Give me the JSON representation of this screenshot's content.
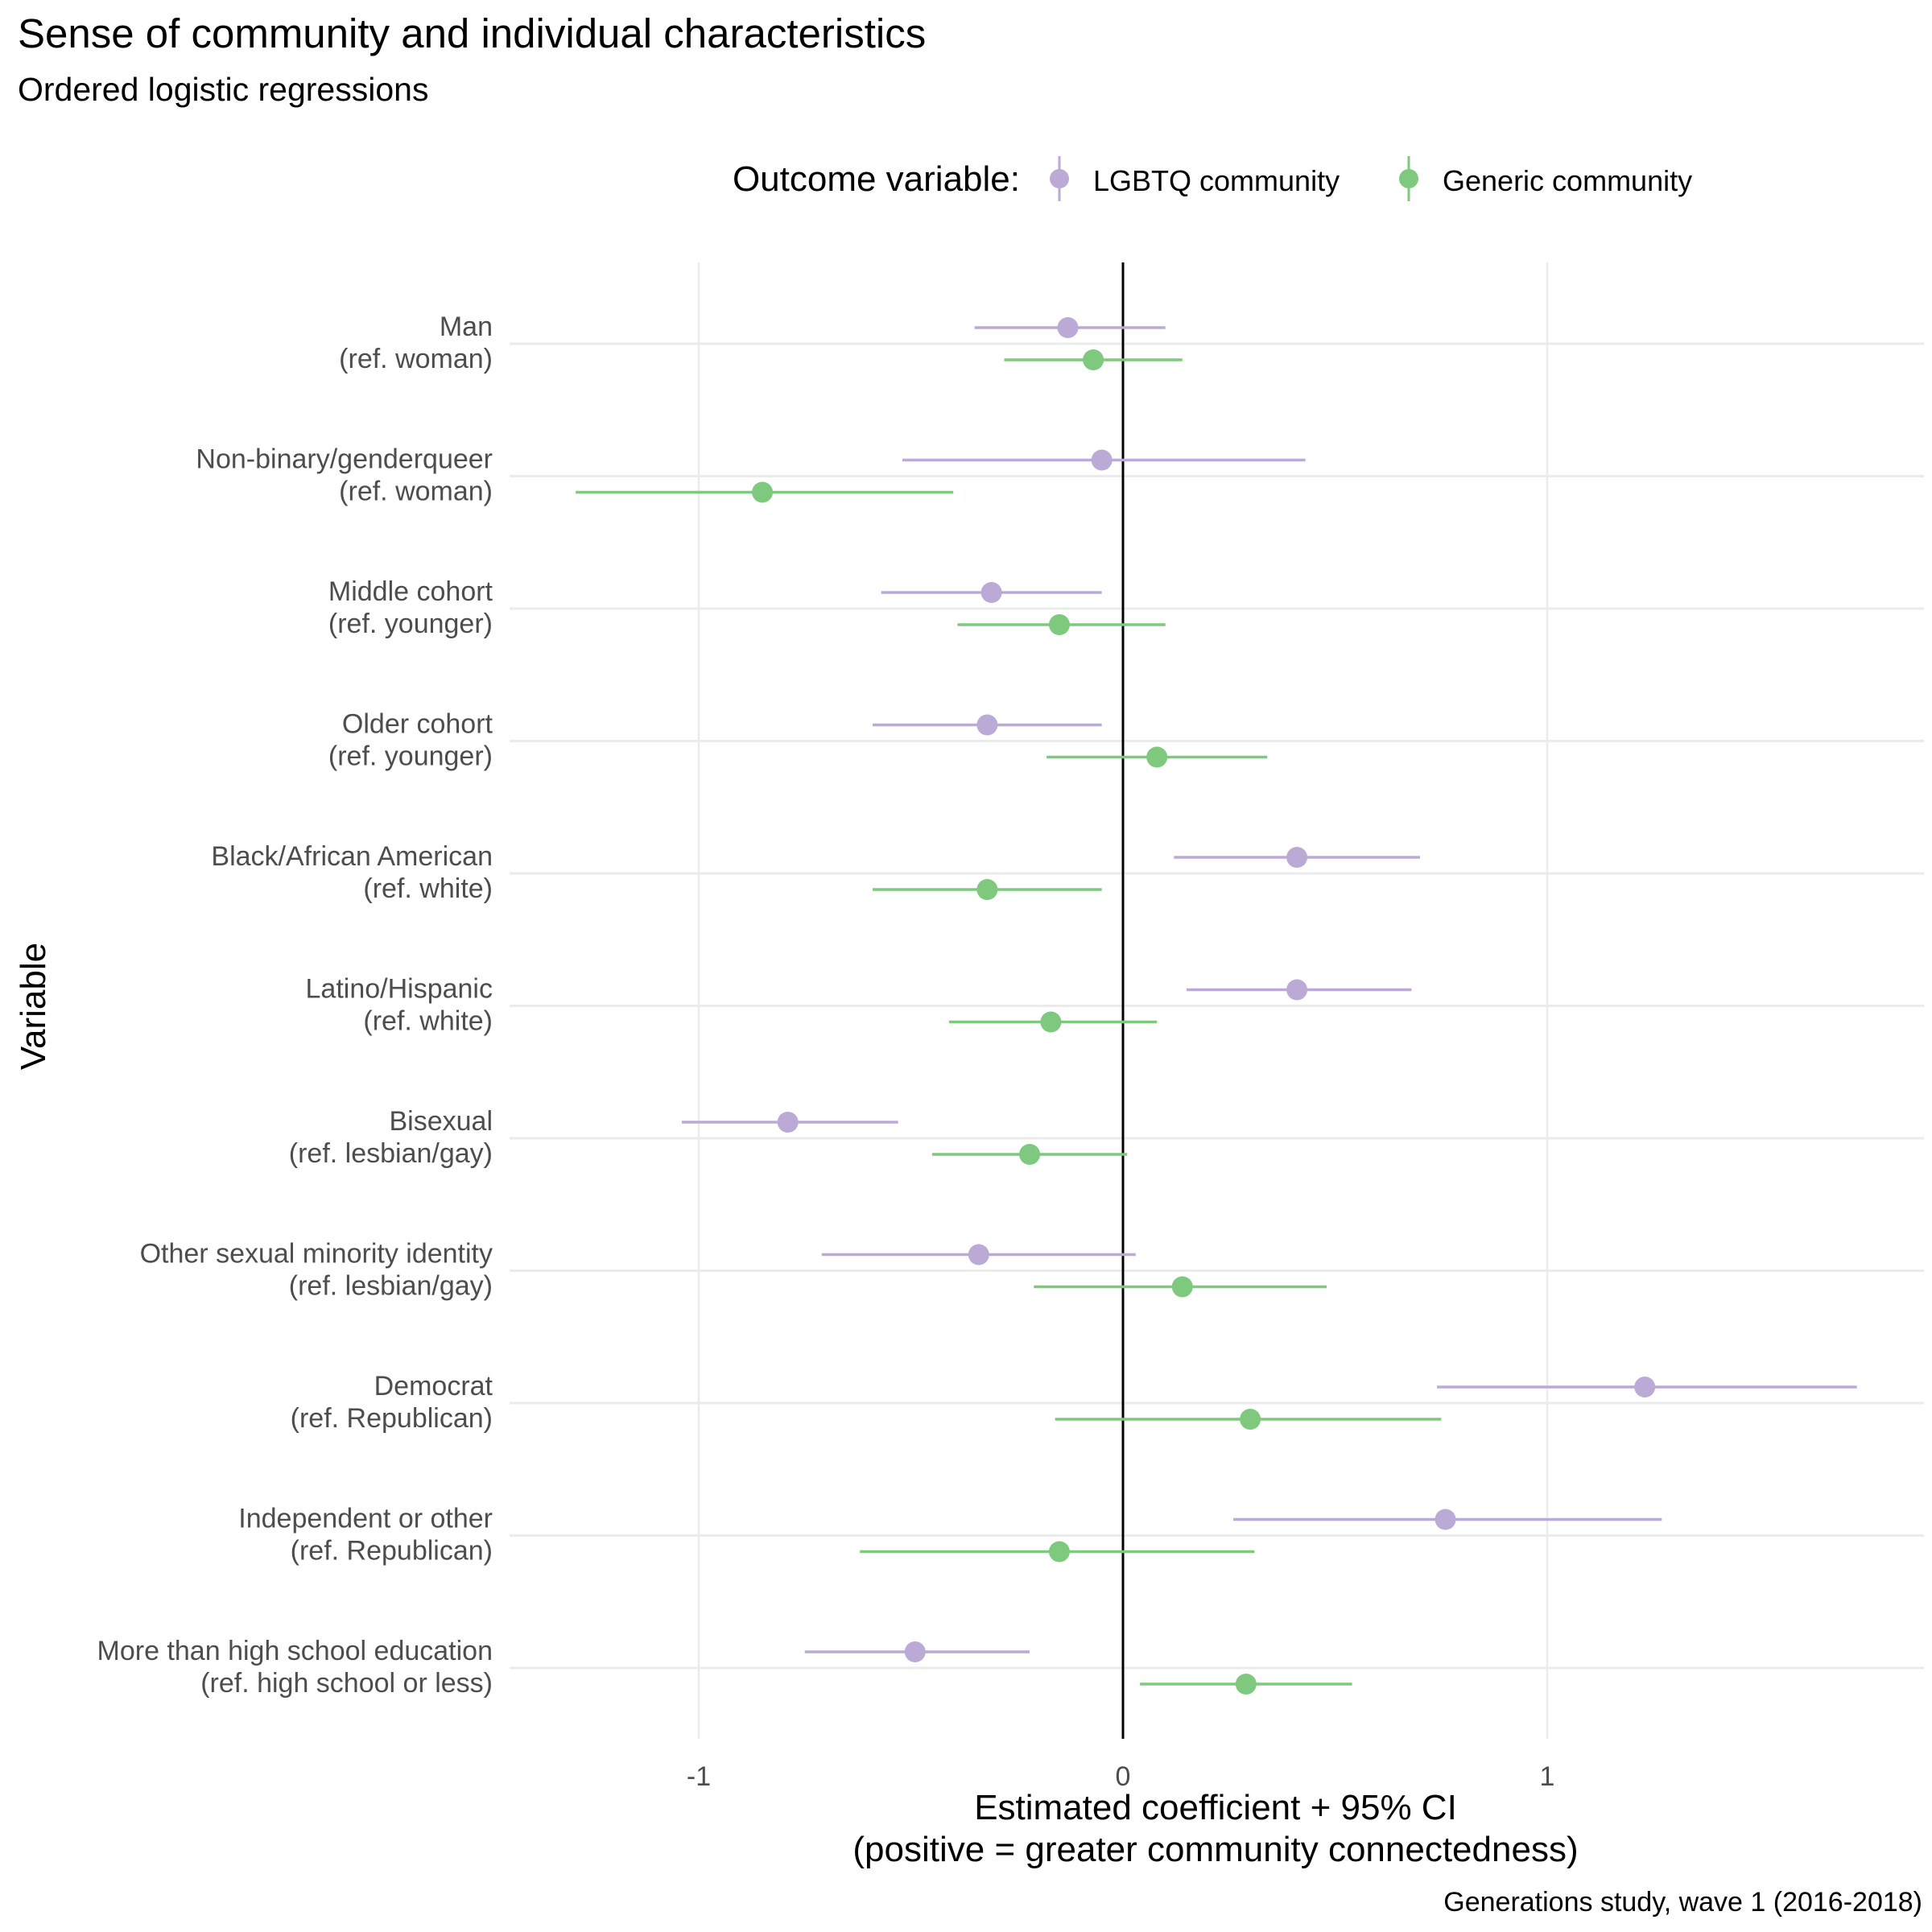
{
  "chart_data": {
    "type": "forest",
    "title": "Sense of community and individual characteristics",
    "subtitle": "Ordered logistic regressions",
    "xlabel_line1": "Estimated coefficient + 95% CI",
    "xlabel_line2": "(positive = greater community connectedness)",
    "ylabel": "Variable",
    "caption": "Generations study, wave 1 (2016-2018)",
    "legend_title": "Outcome variable:",
    "legend_placement": "top",
    "xlim": [
      -1.43,
      1.88
    ],
    "x_ticks": [
      -1,
      0,
      1
    ],
    "x_tick_labels": [
      "-1",
      "0",
      "1"
    ],
    "reference_line": 0,
    "grid": true,
    "categories": [
      {
        "line1": "Man",
        "line2": "(ref. woman)"
      },
      {
        "line1": "Non-binary/genderqueer",
        "line2": "(ref. woman)"
      },
      {
        "line1": "Middle cohort",
        "line2": "(ref. younger)"
      },
      {
        "line1": "Older cohort",
        "line2": "(ref. younger)"
      },
      {
        "line1": "Black/African American",
        "line2": "(ref. white)"
      },
      {
        "line1": "Latino/Hispanic",
        "line2": "(ref. white)"
      },
      {
        "line1": "Bisexual",
        "line2": "(ref. lesbian/gay)"
      },
      {
        "line1": "Other sexual minority identity",
        "line2": "(ref. lesbian/gay)"
      },
      {
        "line1": "Democrat",
        "line2": "(ref. Republican)"
      },
      {
        "line1": "Independent or other",
        "line2": "(ref. Republican)"
      },
      {
        "line1": "More than high school education",
        "line2": "(ref. high school or less)"
      }
    ],
    "series": [
      {
        "name": "LGBTQ community",
        "color": "#bcaad6",
        "estimate": [
          -0.13,
          -0.05,
          -0.31,
          -0.32,
          0.41,
          0.41,
          -0.79,
          -0.34,
          1.23,
          0.76,
          -0.49
        ],
        "ci_low": [
          -0.35,
          -0.52,
          -0.57,
          -0.59,
          0.12,
          0.15,
          -1.04,
          -0.71,
          0.74,
          0.26,
          -0.75
        ],
        "ci_high": [
          0.1,
          0.43,
          -0.05,
          -0.05,
          0.7,
          0.68,
          -0.53,
          0.03,
          1.73,
          1.27,
          -0.22
        ]
      },
      {
        "name": "Generic community",
        "color": "#7ec97e",
        "estimate": [
          -0.07,
          -0.85,
          -0.15,
          0.08,
          -0.32,
          -0.17,
          -0.22,
          0.14,
          0.3,
          -0.15,
          0.29
        ],
        "ci_low": [
          -0.28,
          -1.29,
          -0.39,
          -0.18,
          -0.59,
          -0.41,
          -0.45,
          -0.21,
          -0.16,
          -0.62,
          0.04
        ],
        "ci_high": [
          0.14,
          -0.4,
          0.1,
          0.34,
          -0.05,
          0.08,
          0.01,
          0.48,
          0.75,
          0.31,
          0.54
        ]
      }
    ]
  }
}
